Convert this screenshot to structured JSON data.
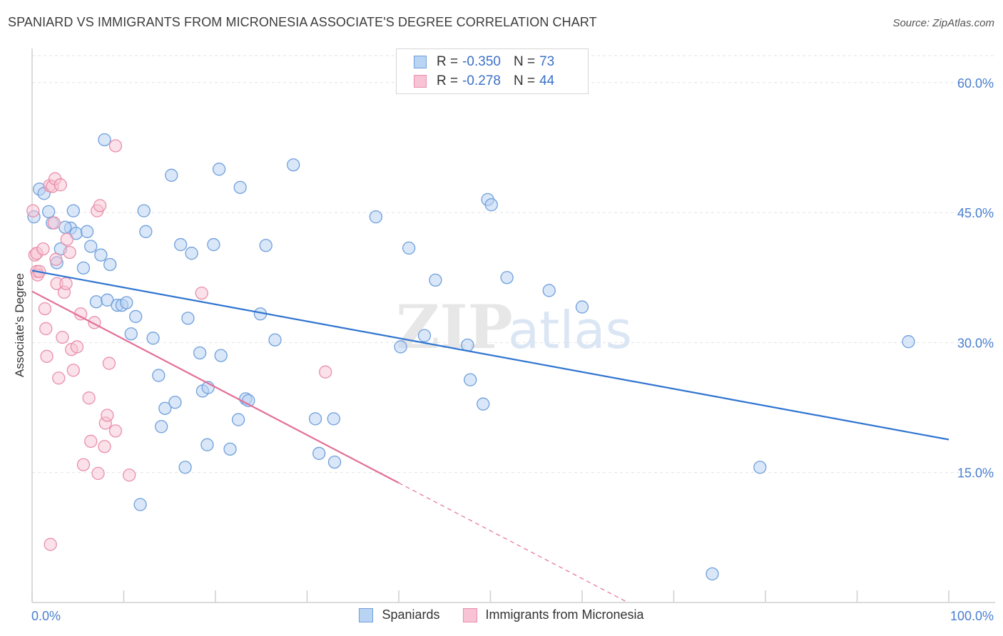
{
  "title": "SPANIARD VS IMMIGRANTS FROM MICRONESIA ASSOCIATE'S DEGREE CORRELATION CHART",
  "source": "Source: ZipAtlas.com",
  "watermark": {
    "zip": "ZIP",
    "atlas": "atlas"
  },
  "legend_top": [
    {
      "r_label": "R =",
      "r_value": "-0.350",
      "n_label": "N =",
      "n_value": "73"
    },
    {
      "r_label": "R =",
      "r_value": "-0.278",
      "n_label": "N =",
      "n_value": "44"
    }
  ],
  "chart_data": {
    "type": "scatter",
    "title": "SPANIARD VS IMMIGRANTS FROM MICRONESIA ASSOCIATE'S DEGREE CORRELATION CHART",
    "xlabel": "",
    "ylabel": "Associate's Degree",
    "xlim": [
      0,
      100
    ],
    "ylim": [
      0,
      65
    ],
    "x_tick_labels": [
      "0.0%",
      "100.0%"
    ],
    "y_ticks": [
      15,
      30,
      45,
      60
    ],
    "y_tick_labels": [
      "15.0%",
      "30.0%",
      "45.0%",
      "60.0%"
    ],
    "grid": true,
    "legend_position": "bottom",
    "colors": {
      "blue_fill": "#b9d3f3",
      "blue_stroke": "#6f9fdc",
      "blue_line": "#2f74d0",
      "pink_fill": "#f8c3d4",
      "pink_stroke": "#e98fab",
      "pink_line": "#e36f97",
      "tick_label": "#4a7fcf"
    },
    "series": [
      {
        "name": "Spaniards",
        "r": -0.35,
        "n": 73,
        "trend": {
          "x0": 0,
          "y0": 38.3,
          "x1": 100,
          "y1": 18.8
        },
        "points": [
          [
            0.2,
            44.5
          ],
          [
            0.8,
            47.7
          ],
          [
            1.3,
            47.2
          ],
          [
            1.8,
            45.1
          ],
          [
            2.2,
            43.8
          ],
          [
            2.7,
            39.2
          ],
          [
            3.1,
            40.8
          ],
          [
            4.5,
            45.2
          ],
          [
            4.2,
            43.2
          ],
          [
            4.8,
            42.6
          ],
          [
            5.6,
            38.6
          ],
          [
            3.6,
            43.3
          ],
          [
            6.0,
            42.8
          ],
          [
            6.4,
            41.1
          ],
          [
            7.5,
            40.1
          ],
          [
            8.5,
            39.0
          ],
          [
            7.0,
            34.7
          ],
          [
            8.2,
            34.9
          ],
          [
            9.3,
            34.3
          ],
          [
            9.8,
            34.3
          ],
          [
            10.3,
            34.6
          ],
          [
            11.3,
            33.0
          ],
          [
            10.8,
            31.0
          ],
          [
            7.9,
            53.4
          ],
          [
            12.2,
            45.2
          ],
          [
            12.4,
            42.8
          ],
          [
            15.2,
            49.3
          ],
          [
            16.2,
            41.3
          ],
          [
            17.4,
            40.3
          ],
          [
            17.0,
            32.8
          ],
          [
            13.2,
            30.5
          ],
          [
            13.8,
            26.2
          ],
          [
            14.1,
            20.3
          ],
          [
            14.5,
            22.4
          ],
          [
            15.6,
            23.1
          ],
          [
            11.8,
            11.3
          ],
          [
            16.7,
            15.6
          ],
          [
            18.3,
            28.8
          ],
          [
            18.6,
            24.4
          ],
          [
            19.2,
            24.8
          ],
          [
            19.1,
            18.2
          ],
          [
            19.8,
            41.3
          ],
          [
            20.6,
            28.5
          ],
          [
            20.4,
            50.0
          ],
          [
            21.6,
            17.7
          ],
          [
            22.5,
            21.1
          ],
          [
            22.7,
            47.9
          ],
          [
            23.3,
            23.5
          ],
          [
            23.6,
            23.3
          ],
          [
            24.9,
            33.3
          ],
          [
            25.5,
            41.2
          ],
          [
            26.5,
            30.3
          ],
          [
            28.5,
            50.5
          ],
          [
            30.9,
            21.2
          ],
          [
            31.3,
            17.2
          ],
          [
            32.9,
            21.2
          ],
          [
            33.0,
            16.2
          ],
          [
            37.5,
            44.5
          ],
          [
            40.2,
            29.5
          ],
          [
            41.1,
            40.9
          ],
          [
            42.8,
            30.8
          ],
          [
            44.0,
            37.2
          ],
          [
            47.5,
            29.7
          ],
          [
            47.8,
            25.7
          ],
          [
            49.2,
            22.9
          ],
          [
            49.7,
            46.5
          ],
          [
            50.1,
            45.9
          ],
          [
            51.8,
            37.5
          ],
          [
            56.4,
            36.0
          ],
          [
            60.0,
            34.1
          ],
          [
            79.4,
            15.6
          ],
          [
            74.2,
            3.3
          ],
          [
            95.6,
            30.1
          ]
        ]
      },
      {
        "name": "Immigrants from Micronesia",
        "r": -0.278,
        "n": 44,
        "trend": {
          "x0": 0,
          "y0": 35.9,
          "x1": 40.0,
          "y1": 13.8
        },
        "trend_dashed": {
          "x0": 40.0,
          "y0": 13.8,
          "x1": 65.0,
          "y1": 0.0
        },
        "points": [
          [
            0.1,
            45.2
          ],
          [
            0.3,
            40.1
          ],
          [
            0.5,
            40.3
          ],
          [
            0.5,
            38.2
          ],
          [
            0.6,
            37.8
          ],
          [
            0.8,
            38.2
          ],
          [
            1.2,
            40.8
          ],
          [
            1.4,
            33.9
          ],
          [
            1.5,
            31.6
          ],
          [
            1.6,
            28.4
          ],
          [
            1.9,
            48.1
          ],
          [
            2.0,
            6.7
          ],
          [
            2.2,
            48.0
          ],
          [
            2.4,
            43.8
          ],
          [
            2.5,
            48.9
          ],
          [
            2.6,
            39.6
          ],
          [
            2.7,
            36.8
          ],
          [
            2.9,
            25.9
          ],
          [
            3.1,
            48.2
          ],
          [
            3.3,
            30.6
          ],
          [
            3.5,
            35.8
          ],
          [
            3.7,
            36.8
          ],
          [
            3.8,
            41.9
          ],
          [
            4.1,
            40.4
          ],
          [
            4.3,
            29.2
          ],
          [
            4.5,
            26.8
          ],
          [
            4.9,
            29.5
          ],
          [
            5.3,
            33.3
          ],
          [
            5.6,
            15.9
          ],
          [
            6.2,
            23.6
          ],
          [
            6.4,
            18.6
          ],
          [
            6.8,
            32.3
          ],
          [
            7.1,
            45.2
          ],
          [
            7.2,
            14.9
          ],
          [
            7.4,
            45.8
          ],
          [
            7.9,
            18.0
          ],
          [
            8.0,
            20.7
          ],
          [
            8.2,
            21.6
          ],
          [
            8.4,
            27.6
          ],
          [
            9.1,
            19.8
          ],
          [
            9.1,
            52.7
          ],
          [
            10.6,
            14.7
          ],
          [
            18.5,
            35.7
          ],
          [
            32.0,
            26.6
          ]
        ]
      }
    ]
  }
}
